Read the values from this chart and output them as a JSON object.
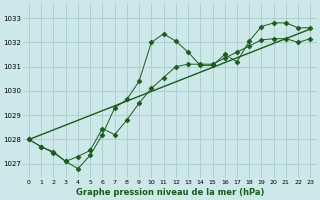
{
  "title": "Graphe pression niveau de la mer (hPa)",
  "bg_color": "#cce8e8",
  "grid_color": "#aacccc",
  "line_color": "#1a5c1a",
  "xlim": [
    -0.5,
    23.5
  ],
  "ylim": [
    1026.4,
    1033.6
  ],
  "xticks": [
    0,
    1,
    2,
    3,
    4,
    5,
    6,
    7,
    8,
    9,
    10,
    11,
    12,
    13,
    14,
    15,
    16,
    17,
    18,
    19,
    20,
    21,
    22,
    23
  ],
  "yticks": [
    1027,
    1028,
    1029,
    1030,
    1031,
    1032,
    1033
  ],
  "series1_x": [
    0,
    1,
    2,
    3,
    4,
    5,
    6,
    7,
    8,
    9,
    10,
    11,
    12,
    13,
    14,
    15,
    16,
    17,
    18,
    19,
    20,
    21,
    22,
    23
  ],
  "series1_y": [
    1028.0,
    1027.7,
    1027.5,
    1027.1,
    1026.8,
    1027.35,
    1028.2,
    1029.3,
    1029.65,
    1030.4,
    1032.0,
    1032.35,
    1032.05,
    1031.6,
    1031.05,
    1031.05,
    1031.5,
    1031.2,
    1032.05,
    1032.65,
    1032.8,
    1032.8,
    1032.6,
    1032.6
  ],
  "series2_x": [
    0,
    1,
    2,
    3,
    4,
    5,
    6,
    7,
    8,
    9,
    10,
    11,
    12,
    13,
    14,
    15,
    16,
    17,
    18,
    19,
    20,
    21,
    22,
    23
  ],
  "series2_y": [
    1028.0,
    1027.7,
    1027.45,
    1027.1,
    1027.3,
    1027.55,
    1028.45,
    1028.2,
    1028.8,
    1029.5,
    1030.1,
    1030.55,
    1031.0,
    1031.1,
    1031.1,
    1031.1,
    1031.35,
    1031.6,
    1031.85,
    1032.1,
    1032.15,
    1032.15,
    1032.0,
    1032.15
  ],
  "trend_x": [
    0,
    23
  ],
  "trend_y": [
    1028.0,
    1032.55
  ]
}
